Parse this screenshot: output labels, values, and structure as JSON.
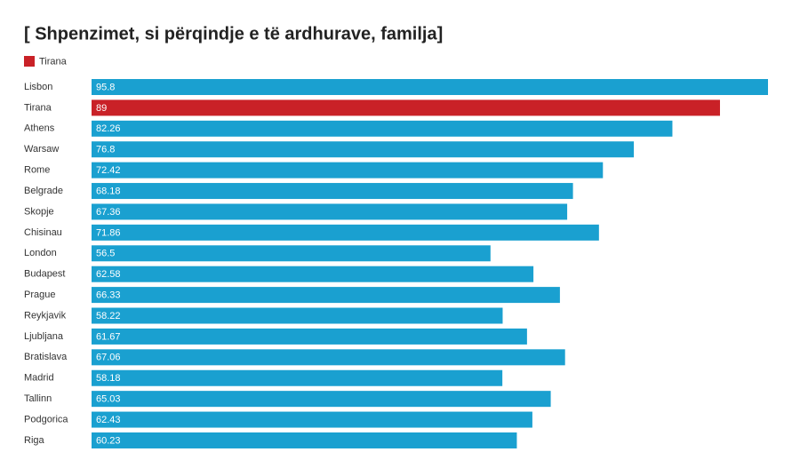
{
  "chart_data": {
    "type": "bar",
    "orientation": "horizontal",
    "title": "[ Shpenzimet, si përqindje e të ardhurave, familja]",
    "categories": [
      "Lisbon",
      "Tirana",
      "Athens",
      "Warsaw",
      "Rome",
      "Belgrade",
      "Skopje",
      "Chisinau",
      "London",
      "Budapest",
      "Prague",
      "Reykjavik",
      "Ljubljana",
      "Bratislava",
      "Madrid",
      "Tallinn",
      "Podgorica",
      "Riga"
    ],
    "values": [
      95.8,
      89,
      82.26,
      76.8,
      72.42,
      68.18,
      67.36,
      71.86,
      56.5,
      62.58,
      66.33,
      58.22,
      61.67,
      67.06,
      58.18,
      65.03,
      62.43,
      60.23
    ],
    "color": "#1aa0d0",
    "highlight": {
      "name": "Tirana",
      "color": "#c92127"
    }
  }
}
